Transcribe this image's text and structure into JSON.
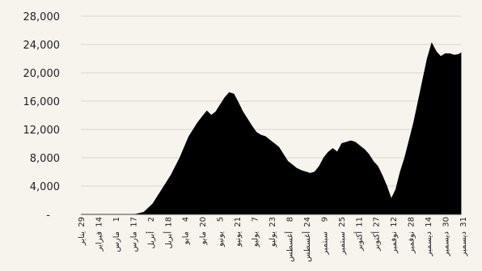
{
  "chart_data": {
    "type": "area",
    "title": "",
    "xlabel": "",
    "ylabel": "",
    "ylim": [
      0,
      28000
    ],
    "y_ticks": [
      0,
      4000,
      8000,
      12000,
      16000,
      20000,
      24000,
      28000
    ],
    "y_tick_labels": [
      "-",
      "4,000",
      "8,000",
      "12,000",
      "16,000",
      "20,000",
      "24,000",
      "28,000"
    ],
    "x_tick_labels": [
      [
        "29",
        "يناير"
      ],
      [
        "14",
        "فبراير"
      ],
      [
        "1",
        "مارس"
      ],
      [
        "17",
        "مارس"
      ],
      [
        "2",
        "أبريل"
      ],
      [
        "18",
        "أبريل"
      ],
      [
        "4",
        "مايو"
      ],
      [
        "20",
        "مايو"
      ],
      [
        "5",
        "يونيو"
      ],
      [
        "21",
        "يونيو"
      ],
      [
        "7",
        "يوليو"
      ],
      [
        "23",
        "يوليو"
      ],
      [
        "8",
        "أغسطس"
      ],
      [
        "24",
        "أغسطس"
      ],
      [
        "9",
        "سبتمبر"
      ],
      [
        "25",
        "سبتمبر"
      ],
      [
        "11",
        "أكتوبر"
      ],
      [
        "27",
        "أكتوبر"
      ],
      [
        "12",
        "نوفمبر"
      ],
      [
        "28",
        "نوفمبر"
      ],
      [
        "14",
        "ديسمبر"
      ],
      [
        "30",
        "ديسمبر"
      ],
      [
        "31",
        "ديسمبر"
      ]
    ],
    "x": [
      0,
      16,
      32,
      48,
      56,
      64,
      72,
      80,
      88,
      96,
      104,
      112,
      116,
      120,
      124,
      128,
      132,
      136,
      140,
      144,
      148,
      152,
      156,
      160,
      164,
      168,
      172,
      176,
      180,
      184,
      188,
      192,
      196,
      200,
      204,
      208,
      212,
      216,
      220,
      224,
      228,
      232,
      236,
      240,
      244,
      248,
      252,
      256,
      260,
      264,
      268,
      272,
      276,
      280,
      284,
      288,
      292,
      296,
      300,
      304,
      308,
      312,
      316,
      320,
      324,
      328,
      332,
      336,
      338
    ],
    "values": [
      0,
      0,
      0,
      0,
      300,
      1500,
      3500,
      5500,
      8000,
      11000,
      13000,
      14600,
      14000,
      14500,
      15500,
      16500,
      17200,
      17000,
      15800,
      14500,
      13500,
      12500,
      11600,
      11200,
      11000,
      10500,
      10000,
      9500,
      8500,
      7500,
      7000,
      6500,
      6200,
      6000,
      5800,
      6000,
      6800,
      8000,
      8800,
      9300,
      8800,
      10000,
      10200,
      10400,
      10200,
      9700,
      9200,
      8500,
      7500,
      6800,
      5500,
      4000,
      2200,
      3500,
      6000,
      8000,
      10500,
      13000,
      16000,
      19000,
      22000,
      24200,
      23000,
      22300,
      22700,
      22700,
      22500,
      22600,
      22800
    ]
  }
}
